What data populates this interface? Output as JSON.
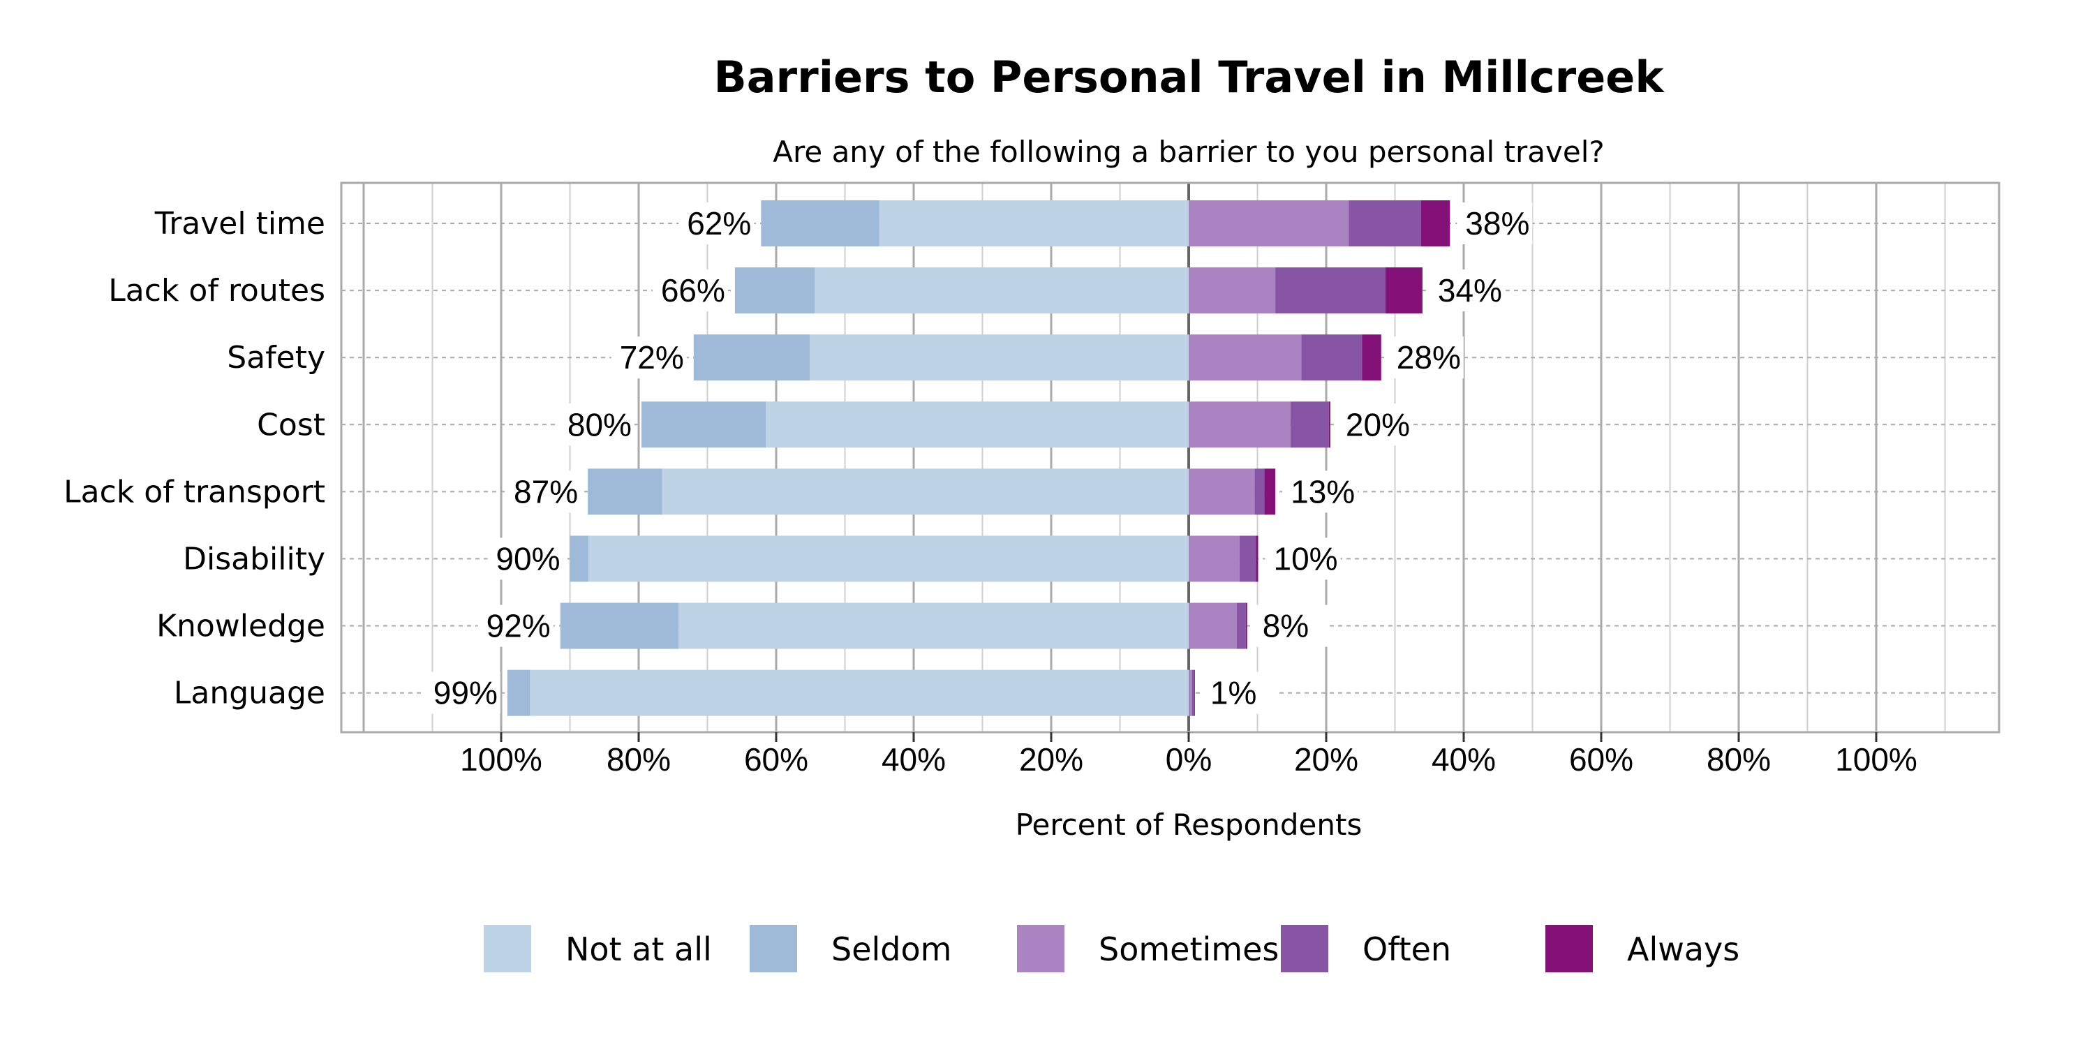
{
  "chart_data": {
    "type": "bar",
    "orientation": "horizontal",
    "stacked": "diverging",
    "title": "Barriers to Personal Travel in Millcreek",
    "subtitle": "Are any of the following a barrier to you personal travel?",
    "xlabel": "Percent of Respondents",
    "ylabel": "",
    "xlim": [
      -120,
      120
    ],
    "xticks": [
      -100,
      -80,
      -60,
      -40,
      -20,
      0,
      20,
      40,
      60,
      80,
      100
    ],
    "xtick_labels": [
      "100%",
      "80%",
      "60%",
      "40%",
      "20%",
      "0%",
      "20%",
      "40%",
      "60%",
      "80%",
      "100%"
    ],
    "grid": true,
    "legend_position": "bottom",
    "categories": [
      "Travel time",
      "Lack of routes",
      "Safety",
      "Cost",
      "Lack of transport",
      "Disability",
      "Knowledge",
      "Language"
    ],
    "series": [
      {
        "name": "Not at all",
        "side": "left",
        "color": "#bed3e6",
        "values": [
          45,
          54.4,
          55.1,
          61.5,
          76.6,
          87.3,
          74.2,
          95.8
        ]
      },
      {
        "name": "Seldom",
        "side": "left",
        "color": "#9ebad8",
        "values": [
          17.2,
          11.6,
          16.9,
          18.1,
          10.8,
          2.7,
          17.2,
          3.3
        ]
      },
      {
        "name": "Sometimes",
        "side": "right",
        "color": "#ab82c2",
        "values": [
          23.3,
          12.6,
          16.4,
          14.8,
          9.6,
          7.4,
          7.0,
          0.5
        ]
      },
      {
        "name": "Often",
        "side": "right",
        "color": "#8855a5",
        "values": [
          10.5,
          16.0,
          8.8,
          5.6,
          1.4,
          2.4,
          1.3,
          0.3
        ]
      },
      {
        "name": "Always",
        "side": "right",
        "color": "#831178",
        "values": [
          4.2,
          5.4,
          2.8,
          0.2,
          1.6,
          0.3,
          0.2,
          0.1
        ]
      }
    ],
    "left_labels": [
      "62%",
      "66%",
      "72%",
      "80%",
      "87%",
      "90%",
      "92%",
      "99%"
    ],
    "right_labels": [
      "38%",
      "34%",
      "28%",
      "20%",
      "13%",
      "10%",
      "8%",
      "1%"
    ]
  }
}
